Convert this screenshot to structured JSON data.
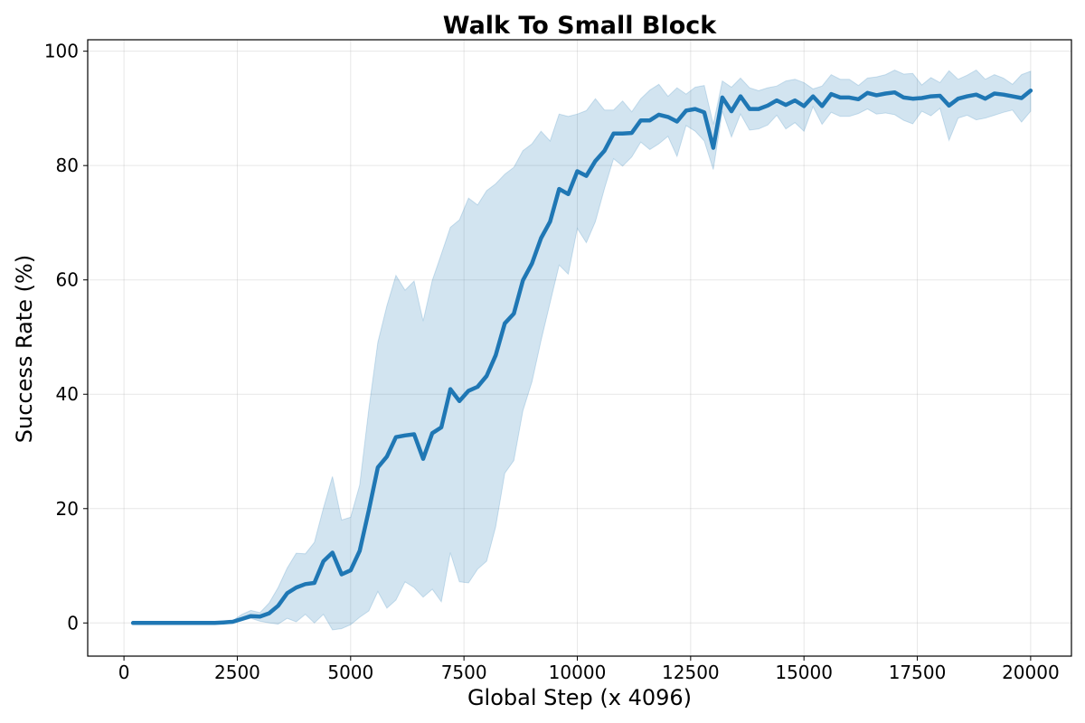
{
  "chart_data": {
    "type": "line",
    "title": "Walk To Small Block",
    "xlabel": "Global Step (x 4096)",
    "ylabel": "Success Rate (%)",
    "xlim": [
      -800,
      20900
    ],
    "ylim": [
      -5.8,
      102
    ],
    "xticks": [
      0,
      2500,
      5000,
      7500,
      10000,
      12500,
      15000,
      17500,
      20000
    ],
    "yticks": [
      0,
      20,
      40,
      60,
      80,
      100
    ],
    "grid": true,
    "colors": {
      "line": "#1f77b4",
      "band": "#1f77b4"
    },
    "series": [
      {
        "x": [
          200,
          400,
          600,
          800,
          1000,
          1200,
          1400,
          1600,
          1800,
          2000,
          2200,
          2400,
          2600,
          2800,
          3000,
          3200,
          3400,
          3600,
          3800,
          4000,
          4200,
          4400,
          4600,
          4800,
          5000,
          5200,
          5400,
          5600,
          5800,
          6000,
          6200,
          6400,
          6600,
          6800,
          7000,
          7200,
          7400,
          7600,
          7800,
          8000,
          8200,
          8400,
          8600,
          8800,
          9000,
          9200,
          9400,
          9600,
          9800,
          10000,
          10200,
          10400,
          10600,
          10800,
          11000,
          11200,
          11400,
          11600,
          11800,
          12000,
          12200,
          12400,
          12600,
          12800,
          13000,
          13200,
          13400,
          13600,
          13800,
          14000,
          14200,
          14400,
          14600,
          14800,
          15000,
          15200,
          15400,
          15600,
          15800,
          16000,
          16200,
          16400,
          16600,
          16800,
          17000,
          17200,
          17400,
          17600,
          17800,
          18000,
          18200,
          18400,
          18600,
          18800,
          19000,
          19200,
          19400,
          19600,
          19800,
          20000
        ],
        "y": [
          0,
          0,
          0,
          0,
          0,
          0,
          0,
          0,
          0,
          0,
          0.1,
          0.2,
          0.7,
          1.2,
          1.1,
          1.7,
          3,
          5.2,
          6.2,
          6.8,
          7,
          10.8,
          12.3,
          8.5,
          9.2,
          12.6,
          19.7,
          27.2,
          29.1,
          32.5,
          32.8,
          33,
          28.7,
          33.2,
          34.2,
          40.9,
          38.8,
          40.6,
          41.3,
          43.2,
          46.8,
          52.4,
          54.1,
          59.9,
          62.9,
          67.3,
          70.2,
          75.9,
          75,
          79,
          78.2,
          80.8,
          82.6,
          85.6,
          85.6,
          85.7,
          87.9,
          87.9,
          88.9,
          88.5,
          87.7,
          89.6,
          89.9,
          89.3,
          83.1,
          91.9,
          89.5,
          92.1,
          89.9,
          89.9,
          90.5,
          91.4,
          90.6,
          91.4,
          90.4,
          92.1,
          90.4,
          92.5,
          91.9,
          91.9,
          91.6,
          92.7,
          92.3,
          92.6,
          92.8,
          91.9,
          91.7,
          91.8,
          92.1,
          92.2,
          90.5,
          91.7,
          92.1,
          92.4,
          91.7,
          92.6,
          92.4,
          92.1,
          91.8,
          93.1
        ],
        "y_lower": [
          0,
          0,
          0,
          0,
          0,
          0,
          0,
          0,
          0,
          0,
          0,
          0,
          0.4,
          0.8,
          0.3,
          0,
          -0.2,
          0.8,
          0.2,
          1.5,
          0,
          1.5,
          -1.2,
          -1,
          -0.3,
          1,
          2.1,
          5.5,
          2.6,
          4,
          7.2,
          6.2,
          4.5,
          5.9,
          3.7,
          12.3,
          7.2,
          7,
          9.4,
          10.8,
          16.8,
          26.2,
          28.4,
          37.1,
          42.2,
          49.4,
          56,
          62.6,
          61,
          69,
          66.5,
          70.2,
          76,
          81.2,
          79.9,
          81.5,
          84.1,
          82.8,
          83.8,
          85.1,
          81.6,
          87,
          86,
          84.3,
          79.3,
          89.5,
          85,
          89,
          86.2,
          86.4,
          87.1,
          88.8,
          86.4,
          87.5,
          86,
          90.3,
          87.2,
          89.3,
          88.6,
          88.6,
          89.1,
          89.9,
          89,
          89.2,
          88.9,
          87.9,
          87.3,
          89.5,
          88.7,
          90,
          84.4,
          88.3,
          88.8,
          88,
          88.3,
          88.8,
          89.3,
          89.7,
          87.6,
          89.5
        ],
        "y_upper": [
          0,
          0,
          0,
          0,
          0,
          0,
          0,
          0,
          0,
          0,
          0.2,
          0.4,
          1.5,
          2.2,
          1.8,
          3.5,
          6.2,
          9.6,
          12.2,
          12.1,
          14.1,
          20.1,
          25.6,
          18,
          18.5,
          24.1,
          37.4,
          49.1,
          55.5,
          60.8,
          58.2,
          59.8,
          52.8,
          59.9,
          64.5,
          69.2,
          70.5,
          74.3,
          73.1,
          75.6,
          76.8,
          78.5,
          79.7,
          82.6,
          83.8,
          86,
          84.3,
          89,
          88.6,
          89,
          89.6,
          91.7,
          89.7,
          89.7,
          91.3,
          89.4,
          91.7,
          93.2,
          94.2,
          92.1,
          93.6,
          92.5,
          93.7,
          94,
          87.2,
          94.8,
          93.7,
          95.3,
          93.6,
          93.1,
          93.6,
          93.9,
          94.8,
          95.1,
          94.5,
          93.4,
          93.9,
          95.9,
          95.1,
          95.1,
          94,
          95.3,
          95.5,
          95.9,
          96.7,
          96,
          96.1,
          94.1,
          95.4,
          94.5,
          96.6,
          95.1,
          95.8,
          96.7,
          95.1,
          95.9,
          95.3,
          94.2,
          95.9,
          96.5
        ]
      }
    ]
  }
}
